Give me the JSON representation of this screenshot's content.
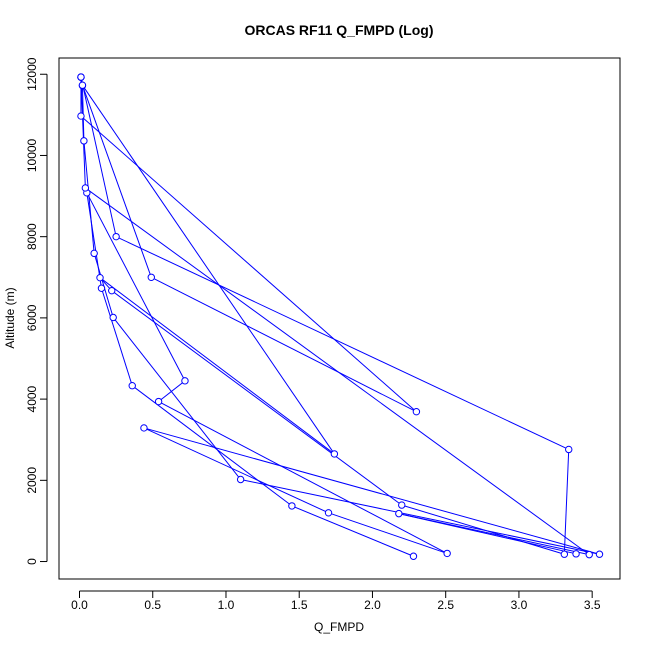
{
  "chart_data": {
    "type": "line",
    "title": "ORCAS RF11 Q_FMPD (Log)",
    "xlabel": "Q_FMPD",
    "ylabel": "Altitude (m)",
    "xlim": [
      -0.14,
      3.69
    ],
    "ylim": [
      -430,
      12400
    ],
    "x_ticks": [
      0,
      0.5,
      1,
      1.5,
      2,
      2.5,
      3,
      3.5
    ],
    "x_tick_labels": [
      "0.0",
      "0.5",
      "1.0",
      "1.5",
      "2.0",
      "2.5",
      "3.0",
      "3.5"
    ],
    "y_ticks": [
      0,
      2000,
      4000,
      6000,
      8000,
      10000,
      12000
    ],
    "y_tick_labels": [
      "0",
      "2000",
      "4000",
      "6000",
      "8000",
      "10000",
      "12000"
    ],
    "grid": false,
    "legend": "none",
    "series": [
      {
        "color": "#0000ff",
        "points": [
          {
            "x": 2.28,
            "y": 130
          },
          {
            "x": 1.45,
            "y": 1370
          },
          {
            "x": 0.36,
            "y": 4330
          },
          {
            "x": 0.15,
            "y": 6730
          },
          {
            "x": 0.05,
            "y": 9080
          },
          {
            "x": 0.72,
            "y": 4450
          },
          {
            "x": 0.54,
            "y": 3940
          },
          {
            "x": 2.51,
            "y": 200
          },
          {
            "x": 1.7,
            "y": 1200
          },
          {
            "x": 0.44,
            "y": 3290
          },
          {
            "x": 3.55,
            "y": 180
          },
          {
            "x": 1.1,
            "y": 2020
          },
          {
            "x": 0.23,
            "y": 6010
          },
          {
            "x": 0.1,
            "y": 7590
          },
          {
            "x": 0.03,
            "y": 10360
          },
          {
            "x": 0.02,
            "y": 11720
          },
          {
            "x": 0.01,
            "y": 11930
          },
          {
            "x": 0.01,
            "y": 11930
          },
          {
            "x": 0.25,
            "y": 8000
          },
          {
            "x": 3.34,
            "y": 2760
          },
          {
            "x": 3.31,
            "y": 180
          },
          {
            "x": 2.2,
            "y": 1390
          },
          {
            "x": 0.22,
            "y": 6670
          },
          {
            "x": 0.14,
            "y": 6990
          },
          {
            "x": 1.74,
            "y": 2650
          },
          {
            "x": 0.02,
            "y": 11730
          },
          {
            "x": 0.49,
            "y": 7000
          },
          {
            "x": 2.3,
            "y": 3690
          },
          {
            "x": 0.01,
            "y": 10970
          },
          {
            "x": 0.01,
            "y": 11930
          },
          {
            "x": 0.04,
            "y": 9200
          },
          {
            "x": 3.48,
            "y": 170
          },
          {
            "x": 2.18,
            "y": 1180
          },
          {
            "x": 3.39,
            "y": 190
          }
        ]
      }
    ]
  }
}
